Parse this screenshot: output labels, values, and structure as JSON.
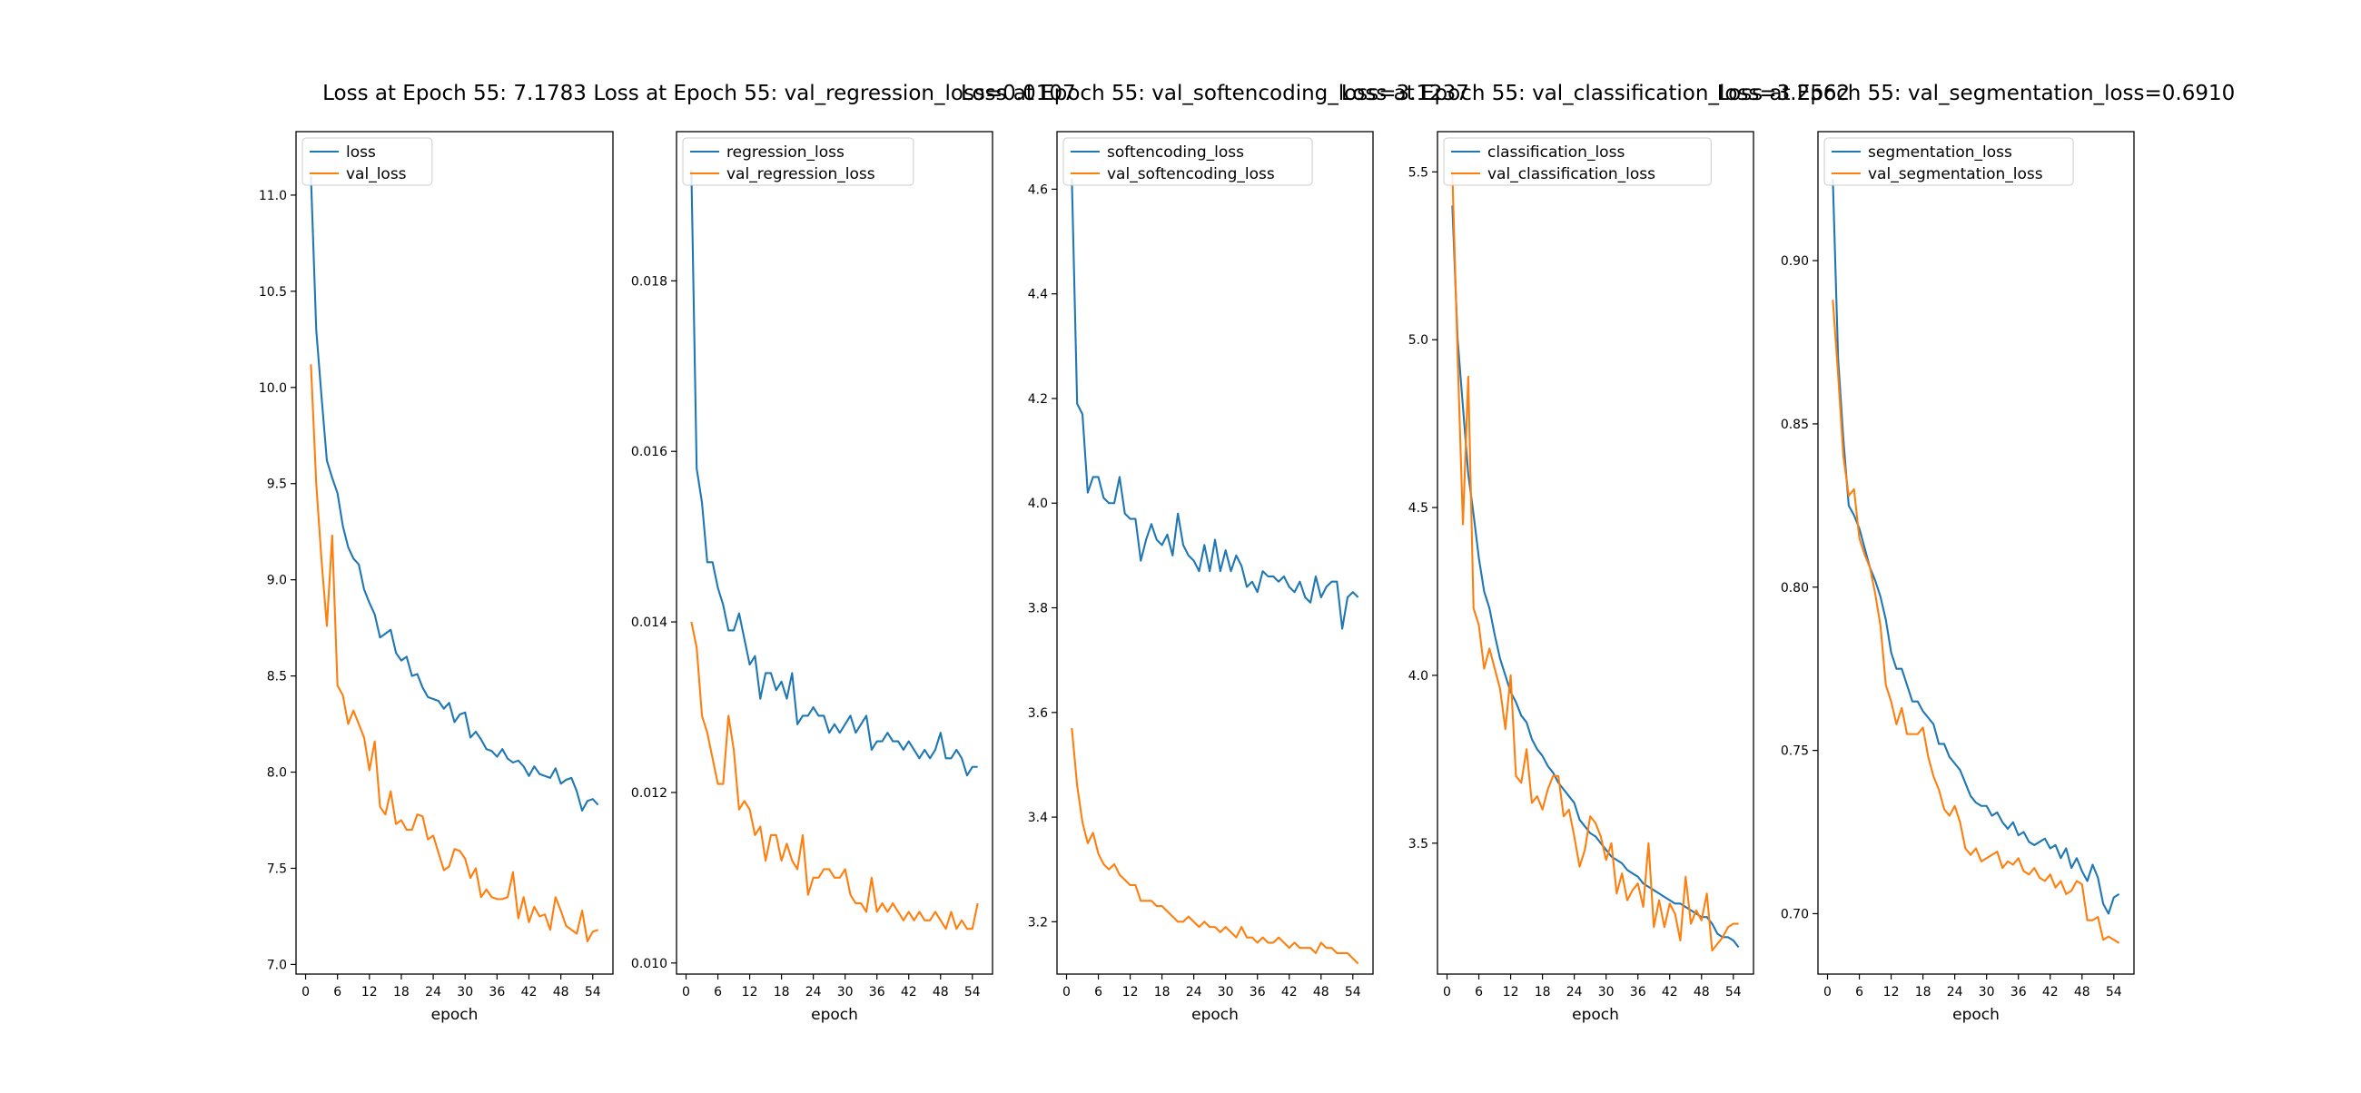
{
  "colors": {
    "train": "#1f77b4",
    "val": "#ff7f0e",
    "axes": "#000000",
    "background": "#ffffff"
  },
  "chart_data": [
    {
      "type": "line",
      "title": "Loss at Epoch 55: 7.1783",
      "xlabel": "epoch",
      "ylabel": "",
      "xlim": [
        -1.8,
        57.8
      ],
      "ylim": [
        6.95,
        11.33
      ],
      "xticks": [
        0,
        6,
        12,
        18,
        24,
        30,
        36,
        42,
        48,
        54
      ],
      "yticks": [
        7.0,
        7.5,
        8.0,
        8.5,
        9.0,
        9.5,
        10.0,
        10.5,
        11.0
      ],
      "ytick_labels": [
        "7.0",
        "7.5",
        "8.0",
        "8.5",
        "9.0",
        "9.5",
        "10.0",
        "10.5",
        "11.0"
      ],
      "grid": false,
      "legend": "upper-left",
      "series": [
        {
          "name": "loss",
          "color": "#1f77b4",
          "x_start": 1,
          "values": [
            11.1,
            10.3,
            9.95,
            9.62,
            9.53,
            9.45,
            9.28,
            9.17,
            9.11,
            9.08,
            8.95,
            8.88,
            8.82,
            8.7,
            8.72,
            8.74,
            8.62,
            8.58,
            8.6,
            8.5,
            8.51,
            8.44,
            8.39,
            8.38,
            8.37,
            8.33,
            8.36,
            8.26,
            8.3,
            8.31,
            8.18,
            8.21,
            8.17,
            8.12,
            8.11,
            8.08,
            8.12,
            8.07,
            8.05,
            8.06,
            8.03,
            7.98,
            8.03,
            7.99,
            7.98,
            7.97,
            8.02,
            7.94,
            7.96,
            7.97,
            7.9,
            7.8,
            7.85,
            7.86,
            7.83
          ]
        },
        {
          "name": "val_loss",
          "color": "#ff7f0e",
          "x_start": 1,
          "values": [
            10.12,
            9.5,
            9.1,
            8.76,
            9.23,
            8.45,
            8.4,
            8.25,
            8.32,
            8.25,
            8.18,
            8.01,
            8.16,
            7.82,
            7.78,
            7.9,
            7.73,
            7.75,
            7.7,
            7.7,
            7.78,
            7.77,
            7.65,
            7.67,
            7.58,
            7.49,
            7.51,
            7.6,
            7.59,
            7.55,
            7.45,
            7.5,
            7.35,
            7.39,
            7.35,
            7.34,
            7.34,
            7.35,
            7.48,
            7.24,
            7.35,
            7.22,
            7.3,
            7.25,
            7.26,
            7.18,
            7.35,
            7.28,
            7.2,
            7.18,
            7.16,
            7.28,
            7.12,
            7.17,
            7.18
          ]
        }
      ]
    },
    {
      "type": "line",
      "title": "Loss at Epoch 55: val_regression_loss=0.0107",
      "xlabel": "epoch",
      "ylabel": "",
      "xlim": [
        -1.8,
        57.8
      ],
      "ylim": [
        0.00987,
        0.01975
      ],
      "xticks": [
        0,
        6,
        12,
        18,
        24,
        30,
        36,
        42,
        48,
        54
      ],
      "yticks": [
        0.01,
        0.012,
        0.014,
        0.016,
        0.018
      ],
      "ytick_labels": [
        "0.010",
        "0.012",
        "0.014",
        "0.016",
        "0.018"
      ],
      "grid": false,
      "legend": "upper-left",
      "series": [
        {
          "name": "regression_loss",
          "color": "#1f77b4",
          "x_start": 1,
          "values": [
            0.0193,
            0.0158,
            0.0154,
            0.0147,
            0.0147,
            0.0144,
            0.0142,
            0.0139,
            0.0139,
            0.0141,
            0.0138,
            0.0135,
            0.0136,
            0.0131,
            0.0134,
            0.0134,
            0.0132,
            0.0133,
            0.0131,
            0.0134,
            0.0128,
            0.0129,
            0.0129,
            0.013,
            0.0129,
            0.0129,
            0.0127,
            0.0128,
            0.0127,
            0.0128,
            0.0129,
            0.0127,
            0.0128,
            0.0129,
            0.0125,
            0.0126,
            0.0126,
            0.0127,
            0.0126,
            0.0126,
            0.0125,
            0.0126,
            0.0125,
            0.0124,
            0.0125,
            0.0124,
            0.0125,
            0.0127,
            0.0124,
            0.0124,
            0.0125,
            0.0124,
            0.0122,
            0.0123,
            0.0123
          ]
        },
        {
          "name": "val_regression_loss",
          "color": "#ff7f0e",
          "x_start": 1,
          "values": [
            0.014,
            0.0137,
            0.0129,
            0.0127,
            0.0124,
            0.0121,
            0.0121,
            0.0129,
            0.0125,
            0.0118,
            0.0119,
            0.0118,
            0.0115,
            0.0116,
            0.0112,
            0.0115,
            0.0115,
            0.0112,
            0.0114,
            0.0112,
            0.0111,
            0.0115,
            0.0108,
            0.011,
            0.011,
            0.0111,
            0.0111,
            0.011,
            0.011,
            0.0111,
            0.0108,
            0.0107,
            0.0107,
            0.0106,
            0.011,
            0.0106,
            0.0107,
            0.0106,
            0.0107,
            0.0106,
            0.0105,
            0.0106,
            0.0105,
            0.0106,
            0.0105,
            0.0105,
            0.0106,
            0.0105,
            0.0104,
            0.0106,
            0.0104,
            0.0105,
            0.0104,
            0.0104,
            0.0107
          ]
        }
      ]
    },
    {
      "type": "line",
      "title": "Loss at Epoch 55: val_softencoding_loss=3.1237",
      "xlabel": "epoch",
      "ylabel": "",
      "xlim": [
        -1.8,
        57.8
      ],
      "ylim": [
        3.1,
        4.71
      ],
      "xticks": [
        0,
        6,
        12,
        18,
        24,
        30,
        36,
        42,
        48,
        54
      ],
      "yticks": [
        3.2,
        3.4,
        3.6,
        3.8,
        4.0,
        4.2,
        4.4,
        4.6
      ],
      "ytick_labels": [
        "3.2",
        "3.4",
        "3.6",
        "3.8",
        "4.0",
        "4.2",
        "4.4",
        "4.6"
      ],
      "grid": false,
      "legend": "upper-left",
      "series": [
        {
          "name": "softencoding_loss",
          "color": "#1f77b4",
          "x_start": 1,
          "values": [
            4.62,
            4.19,
            4.17,
            4.02,
            4.05,
            4.05,
            4.01,
            4.0,
            4.0,
            4.05,
            3.98,
            3.97,
            3.97,
            3.89,
            3.93,
            3.96,
            3.93,
            3.92,
            3.94,
            3.9,
            3.98,
            3.92,
            3.9,
            3.89,
            3.87,
            3.92,
            3.87,
            3.93,
            3.87,
            3.91,
            3.87,
            3.9,
            3.88,
            3.84,
            3.85,
            3.83,
            3.87,
            3.86,
            3.86,
            3.85,
            3.86,
            3.84,
            3.83,
            3.85,
            3.82,
            3.81,
            3.86,
            3.82,
            3.84,
            3.85,
            3.85,
            3.76,
            3.82,
            3.83,
            3.82
          ]
        },
        {
          "name": "val_softencoding_loss",
          "color": "#ff7f0e",
          "x_start": 1,
          "values": [
            3.57,
            3.46,
            3.39,
            3.35,
            3.37,
            3.33,
            3.31,
            3.3,
            3.31,
            3.29,
            3.28,
            3.27,
            3.27,
            3.24,
            3.24,
            3.24,
            3.23,
            3.23,
            3.22,
            3.21,
            3.2,
            3.2,
            3.21,
            3.2,
            3.19,
            3.2,
            3.19,
            3.19,
            3.18,
            3.19,
            3.18,
            3.17,
            3.19,
            3.17,
            3.17,
            3.16,
            3.17,
            3.16,
            3.16,
            3.17,
            3.16,
            3.15,
            3.16,
            3.15,
            3.15,
            3.15,
            3.14,
            3.16,
            3.15,
            3.15,
            3.14,
            3.14,
            3.14,
            3.13,
            3.12
          ]
        }
      ]
    },
    {
      "type": "line",
      "title": "Loss at Epoch 55: val_classification_loss=3.2562",
      "xlabel": "epoch",
      "ylabel": "",
      "xlim": [
        -1.8,
        57.8
      ],
      "ylim": [
        3.11,
        5.62
      ],
      "xticks": [
        0,
        6,
        12,
        18,
        24,
        30,
        36,
        42,
        48,
        54
      ],
      "yticks": [
        3.5,
        4.0,
        4.5,
        5.0,
        5.5
      ],
      "ytick_labels": [
        "3.5",
        "4.0",
        "4.5",
        "5.0",
        "5.5"
      ],
      "grid": false,
      "legend": "upper-left",
      "series": [
        {
          "name": "classification_loss",
          "color": "#1f77b4",
          "x_start": 1,
          "values": [
            5.4,
            5.0,
            4.8,
            4.6,
            4.48,
            4.35,
            4.25,
            4.2,
            4.12,
            4.05,
            4.0,
            3.95,
            3.92,
            3.88,
            3.86,
            3.81,
            3.78,
            3.76,
            3.73,
            3.71,
            3.68,
            3.66,
            3.64,
            3.62,
            3.57,
            3.55,
            3.53,
            3.52,
            3.5,
            3.48,
            3.46,
            3.45,
            3.44,
            3.42,
            3.41,
            3.4,
            3.38,
            3.37,
            3.36,
            3.35,
            3.34,
            3.33,
            3.32,
            3.32,
            3.31,
            3.3,
            3.29,
            3.28,
            3.28,
            3.26,
            3.23,
            3.22,
            3.22,
            3.21,
            3.19
          ]
        },
        {
          "name": "val_classification_loss",
          "color": "#ff7f0e",
          "x_start": 1,
          "values": [
            5.5,
            4.95,
            4.45,
            4.89,
            4.2,
            4.15,
            4.02,
            4.08,
            4.02,
            3.96,
            3.84,
            4.0,
            3.7,
            3.68,
            3.78,
            3.62,
            3.64,
            3.6,
            3.66,
            3.7,
            3.7,
            3.58,
            3.6,
            3.52,
            3.43,
            3.48,
            3.58,
            3.56,
            3.52,
            3.45,
            3.5,
            3.35,
            3.41,
            3.33,
            3.36,
            3.38,
            3.31,
            3.5,
            3.25,
            3.33,
            3.25,
            3.32,
            3.29,
            3.21,
            3.4,
            3.26,
            3.3,
            3.27,
            3.35,
            3.18,
            3.2,
            3.22,
            3.25,
            3.26,
            3.26
          ]
        }
      ]
    },
    {
      "type": "line",
      "title": "Loss at Epoch 55: val_segmentation_loss=0.6910",
      "xlabel": "epoch",
      "ylabel": "",
      "xlim": [
        -1.8,
        57.8
      ],
      "ylim": [
        0.6815,
        0.9395
      ],
      "xticks": [
        0,
        6,
        12,
        18,
        24,
        30,
        36,
        42,
        48,
        54
      ],
      "yticks": [
        0.7,
        0.75,
        0.8,
        0.85,
        0.9
      ],
      "ytick_labels": [
        "0.70",
        "0.75",
        "0.80",
        "0.85",
        "0.90"
      ],
      "grid": false,
      "legend": "upper-left",
      "series": [
        {
          "name": "segmentation_loss",
          "color": "#1f77b4",
          "x_start": 1,
          "values": [
            0.925,
            0.87,
            0.845,
            0.825,
            0.822,
            0.818,
            0.812,
            0.806,
            0.802,
            0.797,
            0.79,
            0.78,
            0.775,
            0.775,
            0.77,
            0.765,
            0.765,
            0.762,
            0.76,
            0.758,
            0.752,
            0.752,
            0.748,
            0.746,
            0.744,
            0.74,
            0.736,
            0.734,
            0.733,
            0.733,
            0.73,
            0.731,
            0.728,
            0.726,
            0.728,
            0.724,
            0.725,
            0.722,
            0.721,
            0.722,
            0.723,
            0.72,
            0.721,
            0.717,
            0.72,
            0.714,
            0.717,
            0.713,
            0.71,
            0.715,
            0.711,
            0.703,
            0.7,
            0.705,
            0.706
          ]
        },
        {
          "name": "val_segmentation_loss",
          "color": "#ff7f0e",
          "x_start": 1,
          "values": [
            0.888,
            0.865,
            0.84,
            0.828,
            0.83,
            0.815,
            0.81,
            0.806,
            0.798,
            0.788,
            0.77,
            0.765,
            0.758,
            0.763,
            0.755,
            0.755,
            0.755,
            0.757,
            0.748,
            0.742,
            0.738,
            0.732,
            0.73,
            0.733,
            0.728,
            0.72,
            0.718,
            0.72,
            0.716,
            0.717,
            0.718,
            0.719,
            0.714,
            0.716,
            0.715,
            0.717,
            0.713,
            0.712,
            0.714,
            0.711,
            0.71,
            0.712,
            0.708,
            0.71,
            0.706,
            0.707,
            0.71,
            0.709,
            0.698,
            0.698,
            0.699,
            0.692,
            0.693,
            0.692,
            0.691
          ]
        }
      ]
    }
  ]
}
